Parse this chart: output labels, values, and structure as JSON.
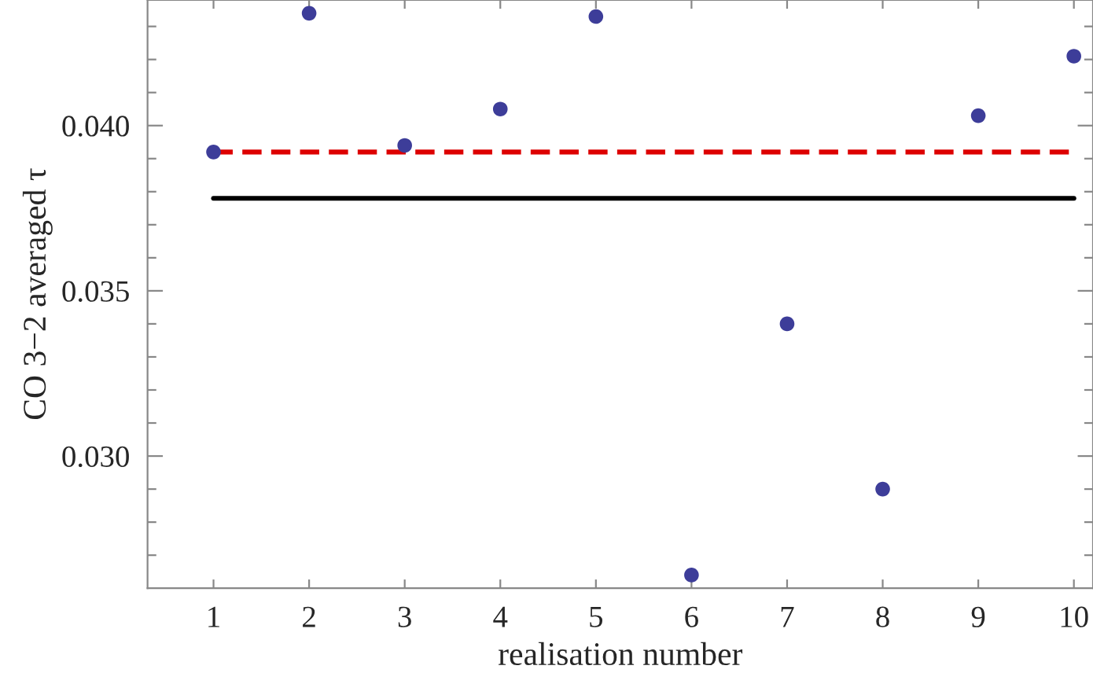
{
  "chart_data": {
    "type": "scatter",
    "xlabel": "realisation number",
    "ylabel": "CO 3−2 averaged τ",
    "x": [
      1,
      2,
      3,
      4,
      5,
      6,
      7,
      8,
      9,
      10
    ],
    "series": [
      {
        "color": "#3d3d99",
        "values": [
          0.0392,
          0.0434,
          0.0394,
          0.0405,
          0.0433,
          0.0264,
          0.034,
          0.029,
          0.0403,
          0.0421
        ]
      },
      {
        "type": "line",
        "color": "#dd0000",
        "line_style": "dashed",
        "marker": "none",
        "values": [
          0.0392,
          0.0392,
          0.0392,
          0.0392,
          0.0392,
          0.0392,
          0.0392,
          0.0392,
          0.0392,
          0.0392
        ]
      },
      {
        "type": "line",
        "color": "#000000",
        "line_style": "solid",
        "marker": "none",
        "values": [
          0.0378,
          0.0378,
          0.0378,
          0.0378,
          0.0378,
          0.0378,
          0.0378,
          0.0378,
          0.0378,
          0.0378
        ]
      }
    ],
    "xlim": [
      0.31,
      10.2
    ],
    "ylim": [
      0.026,
      0.0438
    ],
    "xticks": [
      1,
      2,
      3,
      4,
      5,
      6,
      7,
      8,
      9,
      10
    ],
    "yticks": [
      {
        "value": 0.027,
        "label": null
      },
      {
        "value": 0.028,
        "label": null
      },
      {
        "value": 0.029,
        "label": null
      },
      {
        "value": 0.03,
        "label": "0.030"
      },
      {
        "value": 0.031,
        "label": null
      },
      {
        "value": 0.032,
        "label": null
      },
      {
        "value": 0.033,
        "label": null
      },
      {
        "value": 0.034,
        "label": null
      },
      {
        "value": 0.035,
        "label": "0.035"
      },
      {
        "value": 0.036,
        "label": null
      },
      {
        "value": 0.037,
        "label": null
      },
      {
        "value": 0.038,
        "label": null
      },
      {
        "value": 0.039,
        "label": null
      },
      {
        "value": 0.04,
        "label": "0.040"
      },
      {
        "value": 0.041,
        "label": null
      },
      {
        "value": 0.042,
        "label": null
      },
      {
        "value": 0.043,
        "label": null
      }
    ],
    "grid": false,
    "legend": false,
    "marker": "circle"
  }
}
